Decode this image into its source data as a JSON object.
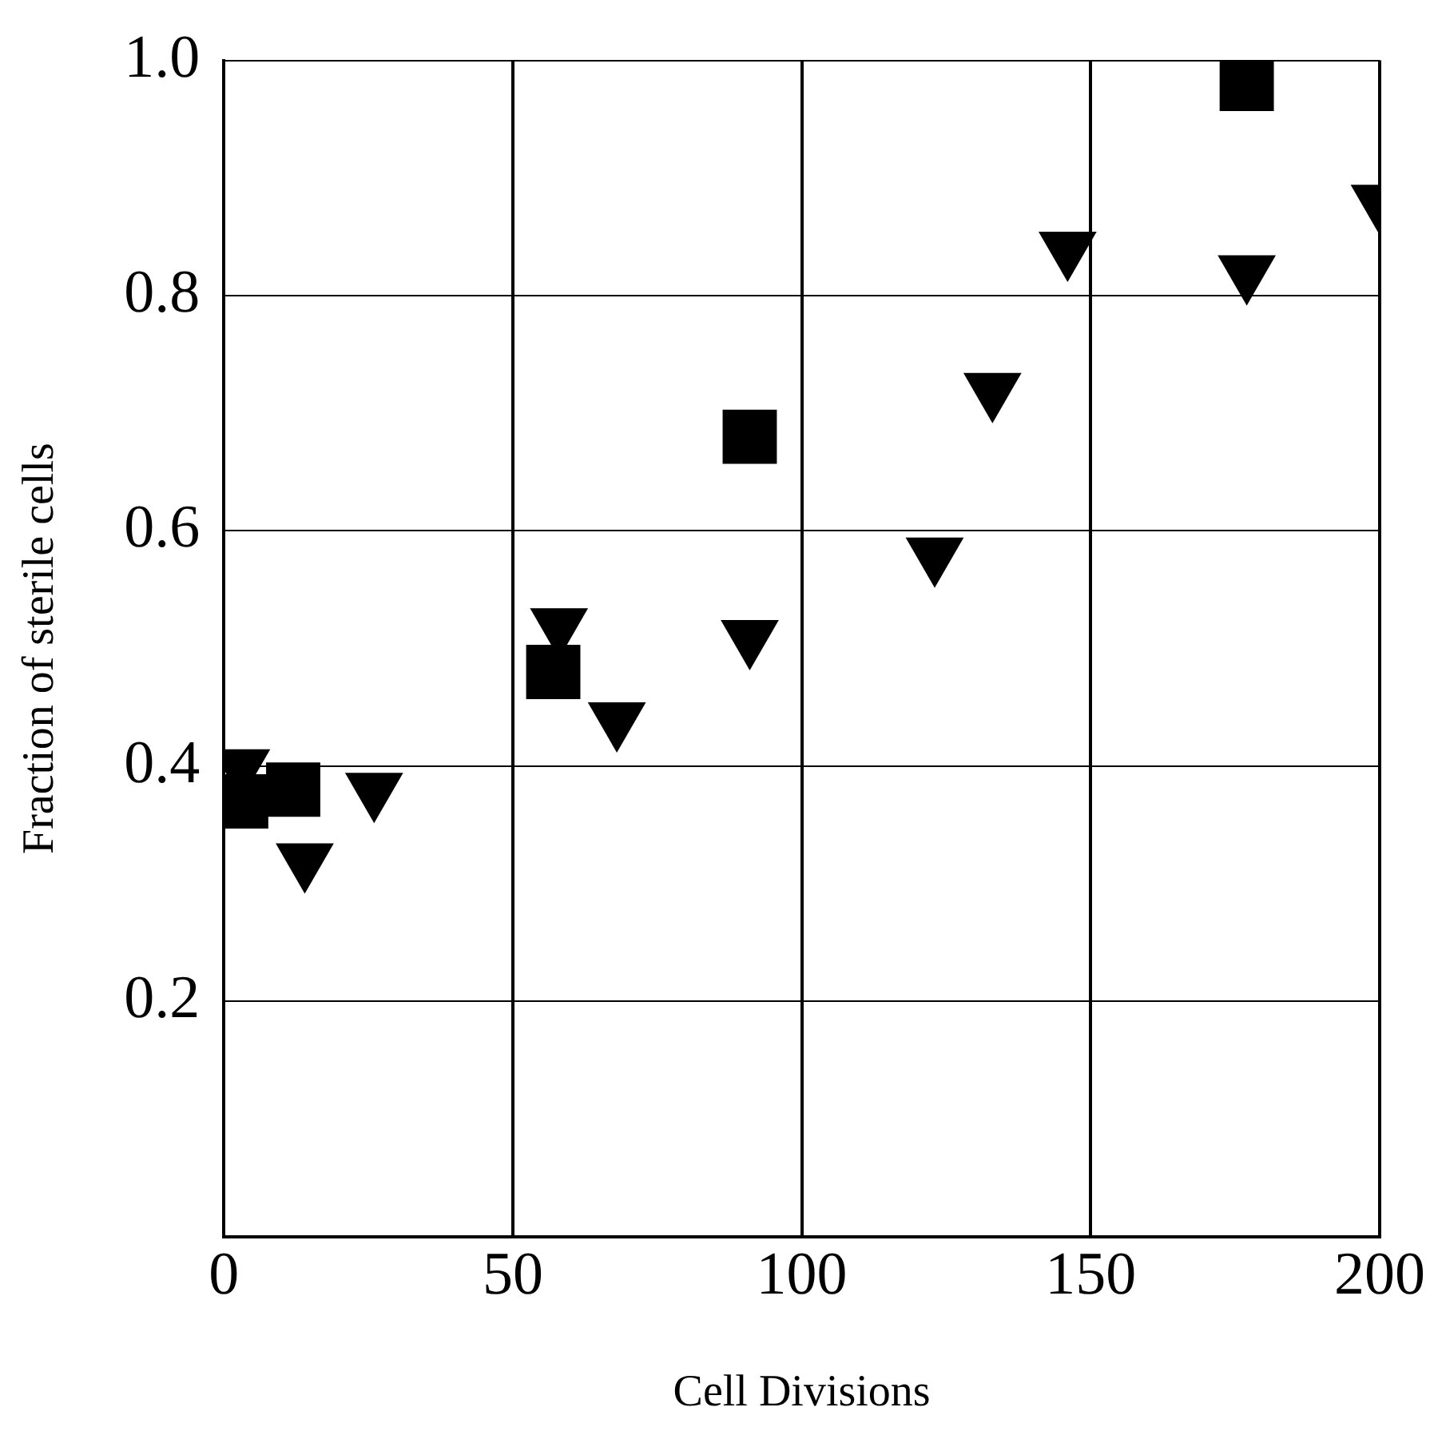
{
  "chart_data": {
    "type": "scatter",
    "xlabel": "Cell Divisions",
    "ylabel": "Fraction of sterile cells",
    "xlim": [
      0,
      200
    ],
    "xticks": [
      0,
      50,
      100,
      150,
      200
    ],
    "ylim": [
      0,
      1.0
    ],
    "yticks": [
      {
        "value": 0.2,
        "label": "0.2"
      },
      {
        "value": 0.4,
        "label": "0.4"
      },
      {
        "value": 0.6,
        "label": "0.6"
      },
      {
        "value": 0.8,
        "label": "0.8"
      },
      {
        "value": 1.0,
        "label": "1.0"
      }
    ],
    "grid": true,
    "legend": false,
    "series": [
      {
        "color": "#000000",
        "marker": "square",
        "x": [
          3,
          12,
          57,
          91,
          177
        ],
        "values": [
          0.37,
          0.38,
          0.48,
          0.68,
          0.98
        ]
      },
      {
        "color": "#000000",
        "marker": "triangle",
        "x": [
          3,
          14,
          26,
          58,
          68,
          91,
          123,
          133,
          146,
          177,
          200
        ],
        "values": [
          0.4,
          0.32,
          0.38,
          0.52,
          0.44,
          0.51,
          0.58,
          0.72,
          0.84,
          0.82,
          0.88
        ]
      }
    ]
  }
}
